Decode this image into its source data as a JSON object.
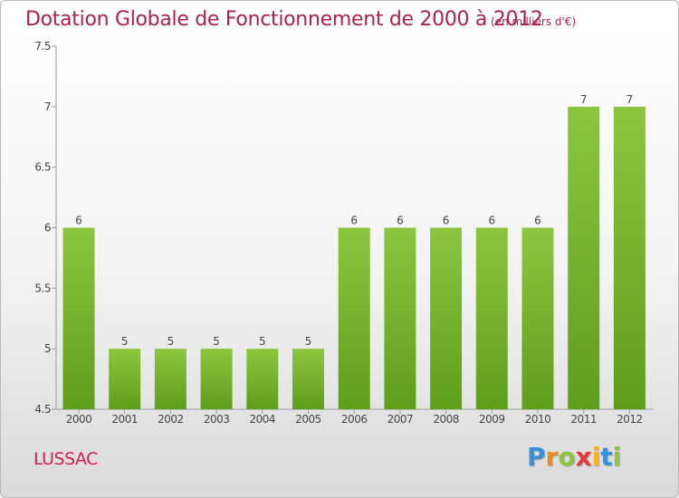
{
  "page": {
    "commune": "LUSSAC",
    "brand_letters": [
      {
        "char": "P",
        "color": "#3a8fd6"
      },
      {
        "char": "r",
        "color": "#f08a1e"
      },
      {
        "char": "o",
        "color": "#8cc63f"
      },
      {
        "char": "x",
        "color": "#e23a3a"
      },
      {
        "char": "i",
        "color": "#f0b81e"
      },
      {
        "char": "t",
        "color": "#3a8fd6"
      },
      {
        "char": "i",
        "color": "#8cc63f"
      }
    ]
  },
  "chart_data": {
    "type": "bar",
    "title": "Dotation Globale de Fonctionnement de 2000 à 2012",
    "unit_note": "(en milliers d'€)",
    "xlabel": "",
    "ylabel": "",
    "categories": [
      "2000",
      "2001",
      "2002",
      "2003",
      "2004",
      "2005",
      "2006",
      "2007",
      "2008",
      "2009",
      "2010",
      "2011",
      "2012"
    ],
    "values": [
      6,
      5,
      5,
      5,
      5,
      5,
      6,
      6,
      6,
      6,
      6,
      7,
      7
    ],
    "data_labels": [
      "6",
      "5",
      "5",
      "5",
      "5",
      "5",
      "6",
      "6",
      "6",
      "6",
      "6",
      "7",
      "7"
    ],
    "ylim": [
      4.5,
      7.5
    ],
    "yticks": [
      4.5,
      5,
      5.5,
      6,
      6.5,
      7,
      7.5
    ],
    "ytick_labels": [
      "4.5",
      "5",
      "5.5",
      "6",
      "6.5",
      "7",
      "7.5"
    ],
    "grid": false,
    "legend": "none",
    "bar_color": "#8cc63f",
    "bar_color_dark": "#5f9e1a"
  }
}
